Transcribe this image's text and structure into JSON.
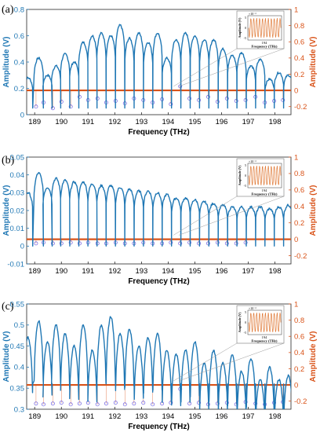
{
  "colors": {
    "left_axis": "#1f77b4",
    "right_axis": "#d95319",
    "trace": "#1f77b4",
    "markers": "#6b5be0"
  },
  "chart_data": [
    {
      "panel_label": "(a)",
      "type": "line",
      "xlabel": "Frequency (THz)",
      "ylabel": "Amplitude (V)",
      "y2label": "Amplitude (V)",
      "xlim": [
        188.7,
        198.6
      ],
      "ylim": [
        0,
        0.8
      ],
      "y2lim": [
        -0.3,
        1.0
      ],
      "xticks": [
        "189",
        "190",
        "191",
        "192",
        "193",
        "194",
        "195",
        "196",
        "197",
        "198"
      ],
      "yticks": [
        "0",
        "0.2",
        "0.4",
        "0.6",
        "0.8"
      ],
      "y2ticks": [
        "-0.2",
        "0",
        "0.2",
        "0.4",
        "0.6",
        "0.8",
        "1"
      ],
      "series": [
        {
          "type": "line",
          "axis": "left",
          "x": [
            188.75,
            189.15,
            189.48,
            189.8,
            190.14,
            190.48,
            190.82,
            191.16,
            191.5,
            191.85,
            192.2,
            192.55,
            192.9,
            193.25,
            193.6,
            193.95,
            194.3,
            194.65,
            195.0,
            195.35,
            195.7,
            196.05,
            196.4,
            196.75,
            197.1,
            197.45,
            197.8,
            198.15,
            198.5
          ],
          "y": [
            0.28,
            0.43,
            0.3,
            0.37,
            0.46,
            0.4,
            0.55,
            0.6,
            0.62,
            0.6,
            0.68,
            0.58,
            0.62,
            0.55,
            0.62,
            0.43,
            0.57,
            0.62,
            0.6,
            0.57,
            0.57,
            0.5,
            0.45,
            0.47,
            0.37,
            0.42,
            0.27,
            0.32,
            0.3
          ]
        },
        {
          "type": "impulse",
          "axis": "right",
          "x": [
            189.05,
            189.33,
            189.68,
            190.0,
            190.35,
            190.68,
            191.0,
            191.35,
            191.68,
            192.03,
            192.38,
            192.72,
            193.07,
            193.42,
            193.77,
            194.1,
            194.45,
            194.8,
            195.15,
            195.5,
            195.85,
            196.2,
            196.55,
            196.9,
            197.27,
            197.62,
            197.97,
            198.3
          ],
          "y": [
            -0.2,
            -0.15,
            -0.22,
            -0.14,
            -0.2,
            -0.08,
            -0.12,
            -0.1,
            -0.15,
            -0.13,
            -0.16,
            -0.1,
            -0.12,
            -0.15,
            -0.11,
            -0.17,
            0.05,
            -0.1,
            -0.12,
            -0.08,
            -0.14,
            -0.1,
            -0.13,
            -0.12,
            -0.08,
            -0.15,
            -0.13,
            -0.12
          ]
        }
      ],
      "inset": {
        "ylabel": "Amplitude (V)",
        "xlabel": "Frequency (THz)",
        "xtick": "194",
        "scale": "×10⁻³",
        "yticks": [
          "5",
          "0",
          "-5"
        ]
      }
    },
    {
      "panel_label": "(b)",
      "type": "line",
      "xlabel": "Frequency (THz)",
      "ylabel": "Amplitude (V)",
      "y2label": "Amplitude (V)",
      "xlim": [
        188.7,
        198.6
      ],
      "ylim": [
        -0.01,
        0.05
      ],
      "y2lim": [
        -0.3,
        1.0
      ],
      "xticks": [
        "189",
        "190",
        "191",
        "192",
        "193",
        "194",
        "195",
        "196",
        "197",
        "198"
      ],
      "yticks": [
        "-0.01",
        "0",
        "0.01",
        "0.02",
        "0.03",
        "0.04",
        "0.05"
      ],
      "y2ticks": [
        "-0.2",
        "0",
        "0.2",
        "0.4",
        "0.6",
        "0.8",
        "1"
      ],
      "series": [
        {
          "type": "line",
          "axis": "left",
          "x": [
            188.75,
            189.15,
            189.48,
            189.8,
            190.14,
            190.48,
            190.82,
            191.16,
            191.5,
            191.85,
            192.2,
            192.55,
            192.9,
            193.25,
            193.6,
            193.95,
            194.3,
            194.65,
            195.0,
            195.35,
            195.7,
            196.05,
            196.4,
            196.75,
            197.1,
            197.45,
            197.8,
            198.15,
            198.5
          ],
          "y": [
            0.03,
            0.041,
            0.033,
            0.038,
            0.037,
            0.036,
            0.036,
            0.035,
            0.034,
            0.034,
            0.033,
            0.032,
            0.031,
            0.031,
            0.03,
            0.029,
            0.027,
            0.027,
            0.026,
            0.025,
            0.024,
            0.023,
            0.022,
            0.022,
            0.022,
            0.022,
            0.021,
            0.022,
            0.023
          ]
        },
        {
          "type": "impulse",
          "axis": "right",
          "x": [
            189.05,
            189.33,
            189.68,
            190.0,
            190.35,
            190.68,
            191.0,
            191.35,
            191.68,
            192.03,
            192.38,
            192.72,
            193.07,
            193.42,
            193.77,
            194.1,
            194.45,
            194.8,
            195.15,
            195.5,
            195.85,
            196.2,
            196.55,
            196.9
          ],
          "y": [
            -0.05,
            -0.04,
            -0.05,
            -0.05,
            -0.04,
            -0.05,
            -0.04,
            -0.05,
            -0.05,
            -0.04,
            -0.05,
            -0.05,
            -0.04,
            -0.05,
            -0.05,
            -0.04,
            -0.05,
            -0.04,
            -0.05,
            -0.05,
            -0.04,
            -0.05,
            -0.05,
            -0.04
          ]
        }
      ],
      "inset": {
        "ylabel": "Amplitude (V)",
        "xlabel": "Frequency (THz)",
        "xtick": "194",
        "scale": "×10⁻³",
        "yticks": [
          "5",
          "0",
          "-5"
        ]
      }
    },
    {
      "panel_label": "(c)",
      "type": "line",
      "xlabel": "Frequency (THz)",
      "ylabel": "Amplitude (V)",
      "y2label": "Amplitude (V)",
      "xlim": [
        188.7,
        198.6
      ],
      "ylim": [
        0.3,
        0.55
      ],
      "y2lim": [
        -0.3,
        1.0
      ],
      "xticks": [
        "189",
        "190",
        "191",
        "192",
        "193",
        "194",
        "195",
        "196",
        "197",
        "198"
      ],
      "yticks": [
        "0.3",
        "0.35",
        "0.4",
        "0.45",
        "0.5",
        "0.55"
      ],
      "y2ticks": [
        "-0.2",
        "0",
        "0.2",
        "0.4",
        "0.6",
        "0.8",
        "1"
      ],
      "series": [
        {
          "type": "line",
          "axis": "left",
          "x": [
            188.75,
            189.15,
            189.48,
            189.8,
            190.14,
            190.48,
            190.82,
            191.16,
            191.5,
            191.85,
            192.2,
            192.55,
            192.9,
            193.25,
            193.6,
            193.95,
            194.3,
            194.65,
            195.0,
            195.35,
            195.7,
            196.05,
            196.4,
            196.75,
            197.1,
            197.45,
            197.8,
            198.15,
            198.5
          ],
          "y": [
            0.47,
            0.51,
            0.46,
            0.5,
            0.48,
            0.45,
            0.5,
            0.44,
            0.5,
            0.52,
            0.48,
            0.49,
            0.45,
            0.47,
            0.48,
            0.44,
            0.43,
            0.44,
            0.46,
            0.41,
            0.44,
            0.41,
            0.43,
            0.39,
            0.42,
            0.37,
            0.4,
            0.37,
            0.38
          ]
        },
        {
          "type": "impulse",
          "axis": "right",
          "x": [
            189.05,
            189.33,
            189.68,
            190.0,
            190.35,
            190.68,
            191.0,
            191.35,
            191.68,
            192.03,
            192.38,
            192.72,
            193.07,
            193.42,
            193.77,
            194.1,
            194.45,
            194.8,
            195.15,
            195.5,
            195.85,
            196.2,
            196.55,
            196.9,
            197.27,
            197.62,
            197.97,
            198.3
          ],
          "y": [
            -0.23,
            -0.24,
            -0.23,
            -0.22,
            -0.24,
            -0.23,
            -0.22,
            -0.24,
            -0.23,
            -0.22,
            -0.24,
            -0.23,
            -0.22,
            -0.24,
            -0.23,
            -0.22,
            -0.05,
            -0.23,
            -0.22,
            -0.24,
            -0.23,
            -0.22,
            -0.24,
            -0.21,
            -0.23,
            -0.24,
            -0.22,
            -0.21
          ]
        }
      ],
      "inset": {
        "ylabel": "Amplitude (V)",
        "xlabel": "Frequency (THz)",
        "xtick": "194",
        "scale": "×10⁻³",
        "yticks": [
          "5",
          "0",
          "-5"
        ]
      }
    }
  ]
}
